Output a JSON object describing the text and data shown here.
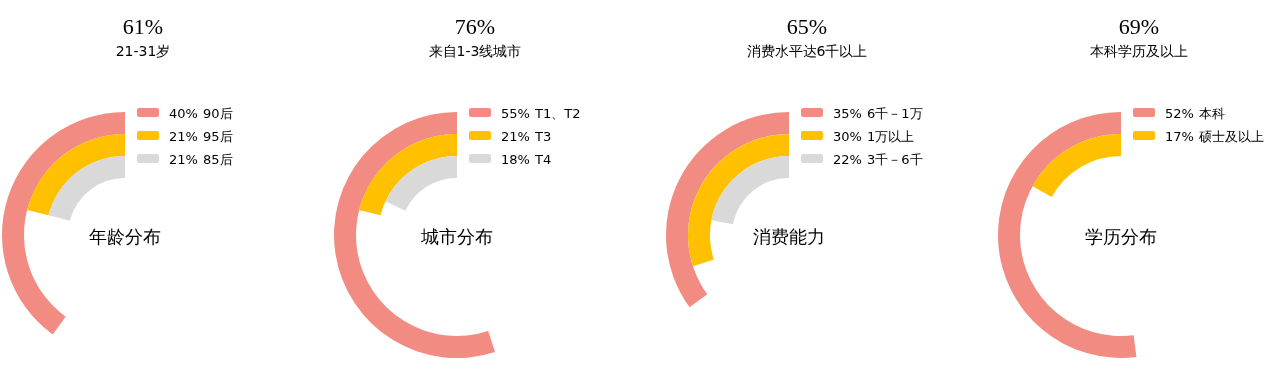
{
  "chart_data": [
    {
      "type": "other",
      "title": "61%",
      "subtitle": "21-31岁",
      "annotations": [
        "年龄分布"
      ],
      "categories": [
        "90后",
        "95后",
        "85后"
      ],
      "values": [
        40,
        21,
        21
      ],
      "value_labels": [
        "40%",
        "21%",
        "21%"
      ],
      "colors": [
        "#f28b82",
        "#ffc000",
        "#d9d9d9"
      ]
    },
    {
      "type": "other",
      "title": "76%",
      "subtitle": "来自1-3线城市",
      "annotations": [
        "城市分布"
      ],
      "categories": [
        "T1、T2",
        "T3",
        "T4"
      ],
      "values": [
        55,
        21,
        18
      ],
      "value_labels": [
        "55%",
        "21%",
        "18%"
      ],
      "colors": [
        "#f28b82",
        "#ffc000",
        "#d9d9d9"
      ]
    },
    {
      "type": "other",
      "title": "65%",
      "subtitle": "消费水平达6千以上",
      "annotations": [
        "消费能力"
      ],
      "categories": [
        "6千－1万",
        "1万以上",
        "3千－6千"
      ],
      "values": [
        35,
        30,
        22
      ],
      "value_labels": [
        "35%",
        "30%",
        "22%"
      ],
      "colors": [
        "#f28b82",
        "#ffc000",
        "#d9d9d9"
      ]
    },
    {
      "type": "other",
      "title": "69%",
      "subtitle": "本科学历及以上",
      "annotations": [
        "学历分布"
      ],
      "categories": [
        "本科",
        "硕士及以上"
      ],
      "values": [
        52,
        17
      ],
      "value_labels": [
        "52%",
        "17%"
      ],
      "colors": [
        "#f28b82",
        "#ffc000"
      ]
    }
  ]
}
